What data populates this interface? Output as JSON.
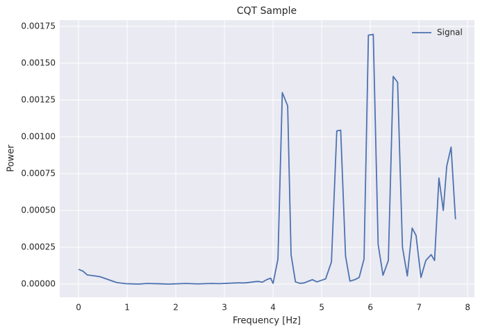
{
  "chart_data": {
    "type": "line",
    "title": "CQT Sample",
    "x_label": "Frequency [Hz]",
    "y_label": "Power",
    "x": [
      0,
      0.09,
      0.18,
      0.35,
      0.44,
      0.53,
      0.7,
      0.79,
      0.97,
      1.23,
      1.41,
      1.67,
      1.85,
      2.2,
      2.46,
      2.72,
      2.9,
      3.25,
      3.43,
      3.6,
      3.69,
      3.78,
      3.87,
      3.95,
      4.0,
      4.1,
      4.19,
      4.3,
      4.37,
      4.46,
      4.55,
      4.64,
      4.73,
      4.81,
      4.9,
      4.99,
      5.08,
      5.2,
      5.31,
      5.39,
      5.49,
      5.58,
      5.68,
      5.77,
      5.87,
      5.96,
      6.06,
      6.16,
      6.26,
      6.37,
      6.47,
      6.56,
      6.66,
      6.76,
      6.86,
      6.94,
      7.04,
      7.14,
      7.25,
      7.32,
      7.41,
      7.5,
      7.57,
      7.66,
      7.75
    ],
    "series": [
      {
        "name": "Signal",
        "color": "#4c72b0",
        "values": [
          0.0001,
          8.8e-05,
          6.2e-05,
          5.5e-05,
          5e-05,
          4e-05,
          2e-05,
          1e-05,
          3e-06,
          0.0,
          4e-06,
          2e-06,
          0.0,
          4e-06,
          1e-06,
          4e-06,
          3e-06,
          8e-06,
          8e-06,
          1.5e-05,
          1.8e-05,
          1.3e-05,
          3e-05,
          4e-05,
          5e-06,
          0.00017,
          0.0013,
          0.00121,
          0.0002,
          1.5e-05,
          5e-06,
          8e-06,
          2e-05,
          3e-05,
          1.5e-05,
          2.5e-05,
          3.5e-05,
          0.00015,
          0.00104,
          0.001045,
          0.00019,
          2e-05,
          3e-05,
          4.5e-05,
          0.00017,
          0.00169,
          0.001695,
          0.00027,
          6e-05,
          0.00016,
          0.00141,
          0.00137,
          0.00025,
          5.5e-05,
          0.00038,
          0.00033,
          4.5e-05,
          0.00016,
          0.0002,
          0.00016,
          0.00072,
          0.0005,
          0.0008,
          0.00093,
          0.00044
        ]
      }
    ],
    "xlim": [
      -0.386,
      8.14
    ],
    "ylim": [
      -8.96e-05,
      0.001792
    ],
    "xticks": [
      0,
      1,
      2,
      3,
      4,
      5,
      6,
      7,
      8
    ],
    "yticks": [
      {
        "value": 0,
        "label": "0.00000"
      },
      {
        "value": 0.00025,
        "label": "0.00025"
      },
      {
        "value": 0.0005,
        "label": "0.00050"
      },
      {
        "value": 0.00075,
        "label": "0.00075"
      },
      {
        "value": 0.001,
        "label": "0.00100"
      },
      {
        "value": 0.00125,
        "label": "0.00125"
      },
      {
        "value": 0.0015,
        "label": "0.00150"
      },
      {
        "value": 0.00175,
        "label": "0.00175"
      }
    ],
    "grid": true,
    "legend": "upper right"
  }
}
